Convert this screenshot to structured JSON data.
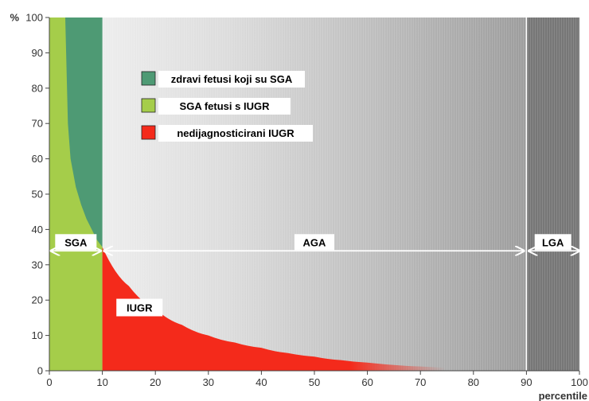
{
  "chart_data": {
    "type": "area",
    "title": "",
    "ylabel": "%",
    "xlabel": "percentile",
    "xlim": [
      0,
      100
    ],
    "ylim": [
      0,
      100
    ],
    "xticks": [
      0,
      10,
      20,
      30,
      40,
      50,
      60,
      70,
      80,
      90,
      100
    ],
    "yticks": [
      0,
      10,
      20,
      30,
      40,
      50,
      60,
      70,
      80,
      90,
      100
    ],
    "grid": false,
    "legend_position": "upper-left-center",
    "legend": [
      {
        "label": "zdravi fetusi koji su SGA",
        "color": "#4e9a74"
      },
      {
        "label": "SGA fetusi s IUGR",
        "color": "#a5cd4a"
      },
      {
        "label": "nedijagnosticirani IUGR",
        "color": "#f42a1b"
      }
    ],
    "series": [
      {
        "name": "zdravi fetusi koji su SGA",
        "color": "#4e9a74",
        "region": "above SGA fetusi s IUGR boundary, 3rd to 10th percentile",
        "x": [
          3,
          10
        ],
        "y_top": [
          100,
          100
        ]
      },
      {
        "name": "SGA fetusi s IUGR",
        "color": "#a5cd4a",
        "x": [
          0,
          3,
          3.5,
          4,
          5,
          6,
          7,
          8,
          9,
          10
        ],
        "y": [
          100,
          100,
          70,
          60,
          52,
          47,
          43,
          40,
          37,
          35
        ]
      },
      {
        "name": "nedijagnosticirani IUGR",
        "color": "#f42a1b",
        "x": [
          10,
          15,
          20,
          25,
          30,
          35,
          40,
          45,
          50,
          55,
          60,
          70,
          80,
          90
        ],
        "y": [
          35,
          24,
          17.5,
          13,
          10,
          8,
          6.5,
          5,
          4,
          3,
          2.3,
          1.2,
          0.6,
          0
        ]
      }
    ],
    "regions": [
      {
        "label": "SGA",
        "x_range": [
          0,
          10
        ],
        "y": 38
      },
      {
        "label": "AGA",
        "x_range": [
          10,
          90
        ],
        "y": 38
      },
      {
        "label": "LGA",
        "x_range": [
          90,
          100
        ],
        "y": 38
      }
    ],
    "annotations": [
      {
        "text": "IUGR",
        "x": 17,
        "y": 17
      }
    ],
    "boundaries": [
      10,
      90
    ]
  }
}
